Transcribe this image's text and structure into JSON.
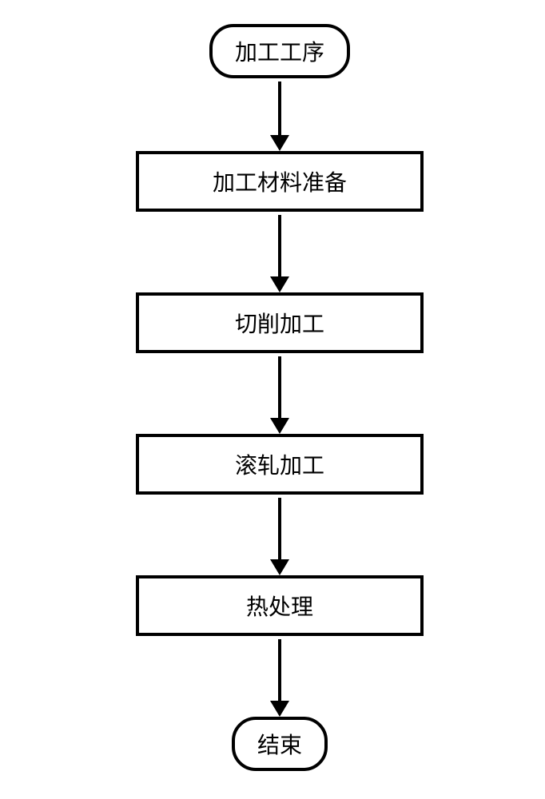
{
  "flowchart": {
    "type": "flowchart",
    "background_color": "#ffffff",
    "border_color": "#000000",
    "border_width": 4,
    "font_size": 28,
    "font_family": "SimSun",
    "nodes": [
      {
        "id": "start",
        "shape": "terminal",
        "label": "加工工序"
      },
      {
        "id": "step1",
        "shape": "process",
        "label": "加工材料准备"
      },
      {
        "id": "step2",
        "shape": "process",
        "label": "切削加工"
      },
      {
        "id": "step3",
        "shape": "process",
        "label": "滚轧加工"
      },
      {
        "id": "step4",
        "shape": "process",
        "label": "热处理"
      },
      {
        "id": "end",
        "shape": "terminal",
        "label": "结束"
      }
    ],
    "edges": [
      {
        "from": "start",
        "to": "step1",
        "line_height": 68
      },
      {
        "from": "step1",
        "to": "step2",
        "line_height": 78
      },
      {
        "from": "step2",
        "to": "step3",
        "line_height": 78
      },
      {
        "from": "step3",
        "to": "step4",
        "line_height": 78
      },
      {
        "from": "step4",
        "to": "end",
        "line_height": 78
      }
    ],
    "terminal_border_radius": 30,
    "process_width": 360,
    "arrow_head_width": 24,
    "arrow_head_height": 20,
    "arrow_line_width": 4
  }
}
